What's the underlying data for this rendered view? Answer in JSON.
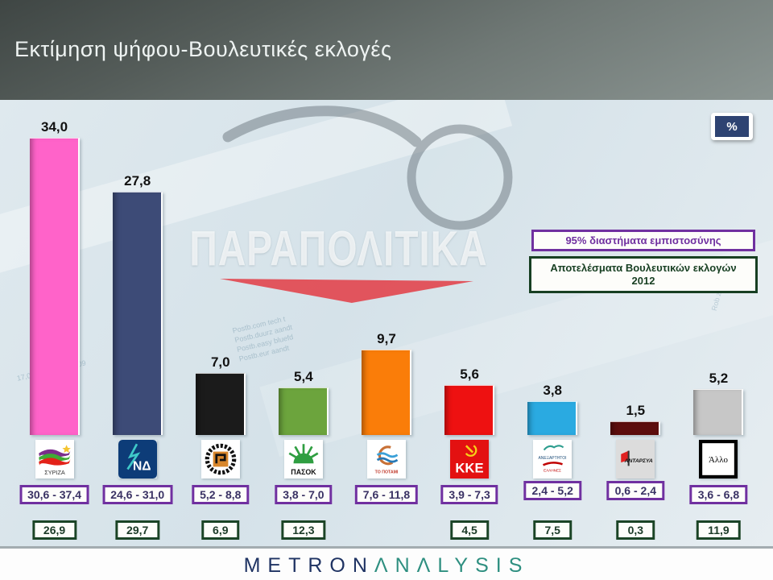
{
  "header": {
    "title": "Εκτίμηση ψήφου-Βουλευτικές εκλογές"
  },
  "percent_badge": "%",
  "watermark": {
    "text": "ΠΑΡΑΠΟΛΙΤΙΚΑ"
  },
  "legend": {
    "confidence_label": "95% διαστήματα εμπιστοσύνης",
    "results_label_line1": "Αποτελέσματα Βουλευτικών εκλογών",
    "results_label_line2": "2012"
  },
  "footer": {
    "brand_metron": "METRON",
    "brand_analysis": "ΛNΛLYSIS"
  },
  "background_texture": {
    "newsprint_left": "Postb.com tech t\nPostb.duurz aandt\nPostb.easy bluefd\nPostb.eur aandt",
    "newsprint_numbers": "17,05  17,00  0223,09",
    "newsprint_right": "Rob zelfs.pro"
  },
  "chart_data": {
    "type": "bar",
    "title": "Εκτίμηση ψήφου-Βουλευτικές εκλογές",
    "unit": "%",
    "ylim": [
      0,
      40
    ],
    "grid": false,
    "legend_position": "right",
    "categories": [
      "ΣΥΡΙΖΑ",
      "ΝΔ",
      "Χρυσή Αυγή",
      "ΠΑΣΟΚ",
      "ΤΟ ΠΟΤΑΜΙ",
      "ΚΚΕ",
      "ΑΝΕΞΑΡΤΗΤΟΙ ΕΛΛΗΝΕΣ",
      "ΑΝΤΑΡΣΥΑ",
      "Άλλο"
    ],
    "series": [
      {
        "name": "Εκτίμηση ψήφου",
        "values": [
          34.0,
          27.8,
          7.0,
          5.4,
          9.7,
          5.6,
          3.8,
          1.5,
          5.2
        ]
      },
      {
        "name": "95% διάστημα εμπιστοσύνης (κάτω όριο)",
        "values": [
          30.6,
          24.6,
          5.2,
          3.8,
          7.6,
          3.9,
          2.4,
          0.6,
          3.6
        ]
      },
      {
        "name": "95% διάστημα εμπιστοσύνης (άνω όριο)",
        "values": [
          37.4,
          31.0,
          8.8,
          7.0,
          11.8,
          7.3,
          5.2,
          2.4,
          6.8
        ]
      },
      {
        "name": "Αποτελέσματα Βουλευτικών εκλογών 2012",
        "values": [
          26.9,
          29.7,
          6.9,
          12.3,
          null,
          4.5,
          7.5,
          0.3,
          11.9
        ]
      }
    ],
    "parties": [
      {
        "name": "ΣΥΡΙΖΑ",
        "value": 34.0,
        "value_label": "34,0",
        "ci_label": "30,6 - 37,4",
        "result_label": "26,9",
        "color": "#ff63c9",
        "logo": "syriza",
        "logo_text": "ΣΥΡΙΖΑ"
      },
      {
        "name": "ΝΔ",
        "value": 27.8,
        "value_label": "27,8",
        "ci_label": "24,6 - 31,0",
        "result_label": "29,7",
        "color": "#3d4b77",
        "logo": "nd",
        "logo_text": "ΝΔ"
      },
      {
        "name": "Χρυσή Αυγή",
        "value": 7.0,
        "value_label": "7,0",
        "ci_label": "5,2 - 8,8",
        "result_label": "6,9",
        "color": "#1b1b1b",
        "logo": "xa",
        "logo_text": ""
      },
      {
        "name": "ΠΑΣΟΚ",
        "value": 5.4,
        "value_label": "5,4",
        "ci_label": "3,8 - 7,0",
        "result_label": "12,3",
        "color": "#6ca43d",
        "logo": "pasok",
        "logo_text": "ΠΑΣΟΚ"
      },
      {
        "name": "ΤΟ ΠΟΤΑΜΙ",
        "value": 9.7,
        "value_label": "9,7",
        "ci_label": "7,6 - 11,8",
        "result_label": null,
        "color": "#fa7d09",
        "logo": "potami",
        "logo_text": "ΤΟ ΠΟΤΑΜΙ"
      },
      {
        "name": "ΚΚΕ",
        "value": 5.6,
        "value_label": "5,6",
        "ci_label": "3,9 - 7,3",
        "result_label": "4,5",
        "color": "#ee1111",
        "logo": "kke",
        "logo_text": "ΚΚΕ"
      },
      {
        "name": "ΑΝΕΞΑΡΤΗΤΟΙ ΕΛΛΗΝΕΣ",
        "value": 3.8,
        "value_label": "3,8",
        "ci_label": "2,4 - 5,2",
        "result_label": "7,5",
        "color": "#2aaae1",
        "logo": "anel",
        "logo_text": "ΑΝΕΞΑΡΤΗΤΟΙ",
        "logo_text2": "ΕΛΛΗΝΕΣ"
      },
      {
        "name": "ΑΝΤΑΡΣΥΑ",
        "value": 1.5,
        "value_label": "1,5",
        "ci_label": "0,6 - 2,4",
        "result_label": "0,3",
        "color": "#5c0d0d",
        "logo": "antarsya",
        "logo_text": "ΑΝΤΑΡΣΥΑ"
      },
      {
        "name": "Άλλο",
        "value": 5.2,
        "value_label": "5,2",
        "ci_label": "3,6 - 6,8",
        "result_label": "11,9",
        "color": "#c7c7c7",
        "logo": "allo",
        "logo_text": "Άλλο"
      }
    ]
  }
}
